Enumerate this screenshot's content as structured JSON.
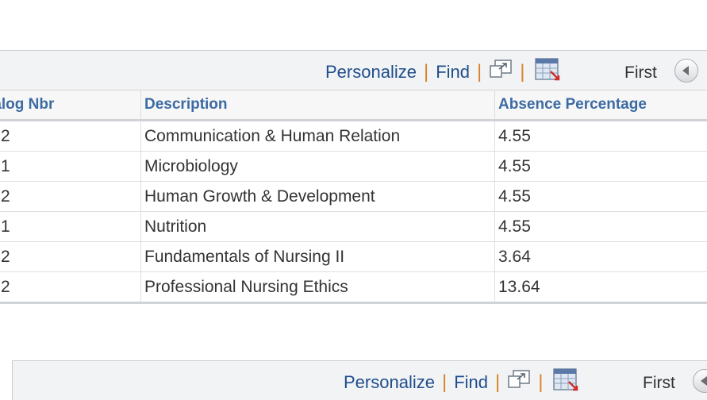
{
  "toolbar": {
    "personalize_label": "Personalize",
    "find_label": "Find",
    "separator": "|",
    "first_label": "First"
  },
  "table": {
    "headers": [
      "talog Nbr",
      "Description",
      "Absence Percentage"
    ],
    "rows": [
      {
        "catalog": "2",
        "description": "Communication & Human Relation",
        "absence": "4.55"
      },
      {
        "catalog": "1",
        "description": "Microbiology",
        "absence": "4.55"
      },
      {
        "catalog": "2",
        "description": "Human Growth & Development",
        "absence": "4.55"
      },
      {
        "catalog": "1",
        "description": "Nutrition",
        "absence": "4.55"
      },
      {
        "catalog": "2",
        "description": "Fundamentals of Nursing II",
        "absence": "3.64"
      },
      {
        "catalog": "2",
        "description": "Professional Nursing Ethics",
        "absence": "13.64"
      }
    ]
  },
  "icons": {
    "new_window": "new-window-icon",
    "download": "download-spreadsheet-icon",
    "previous": "chevron-left-icon"
  },
  "colors": {
    "link": "#1f4e8c",
    "separator": "#d9822b",
    "header_text": "#3c6ba2",
    "toolbar_bg": "#f2f3f5"
  }
}
